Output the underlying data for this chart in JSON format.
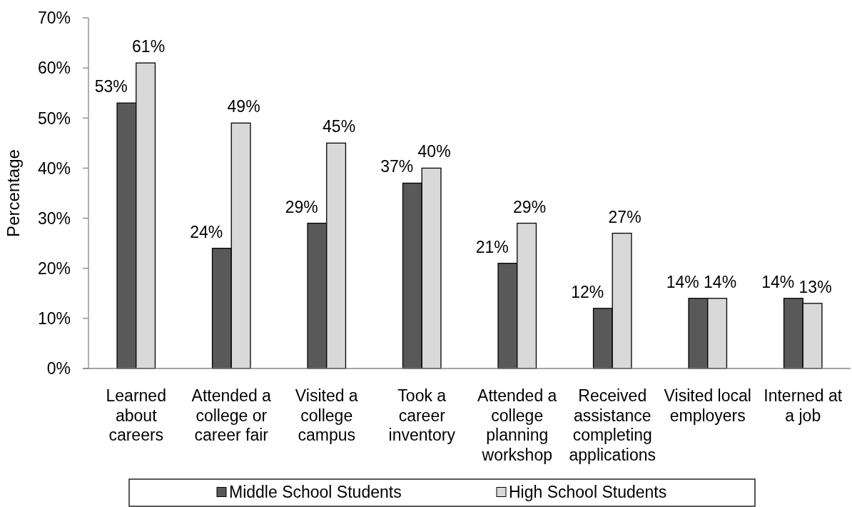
{
  "chart_data": {
    "type": "bar",
    "ylabel": "Percentage",
    "categories": [
      "Learned about careers",
      "Attended a college or career fair",
      "Visited a college campus",
      "Took a career inventory",
      "Attended a college planning workshop",
      "Received assistance completing applications",
      "Visited local employers",
      "Interned at a job"
    ],
    "series": [
      {
        "name": "Middle School Students",
        "color": "#595959",
        "values": [
          53,
          24,
          29,
          37,
          21,
          12,
          14,
          14
        ],
        "value_labels": [
          "53%",
          "24%",
          "29%",
          "37%",
          "21%",
          "12%",
          "14%",
          "14%"
        ]
      },
      {
        "name": "High School Students",
        "color": "#d9d9d9",
        "values": [
          61,
          49,
          45,
          40,
          29,
          27,
          14,
          13
        ],
        "value_labels": [
          "61%",
          "49%",
          "45%",
          "40%",
          "29%",
          "27%",
          "14%",
          "13%"
        ]
      }
    ],
    "ylim": [
      0,
      70
    ],
    "yticks": [
      {
        "value": 0,
        "label": "0%"
      },
      {
        "value": 10,
        "label": "10%"
      },
      {
        "value": 20,
        "label": "20%"
      },
      {
        "value": 30,
        "label": "30%"
      },
      {
        "value": 40,
        "label": "40%"
      },
      {
        "value": 50,
        "label": "50%"
      },
      {
        "value": 60,
        "label": "60%"
      },
      {
        "value": 70,
        "label": "70%"
      }
    ],
    "legend": "bottom"
  }
}
